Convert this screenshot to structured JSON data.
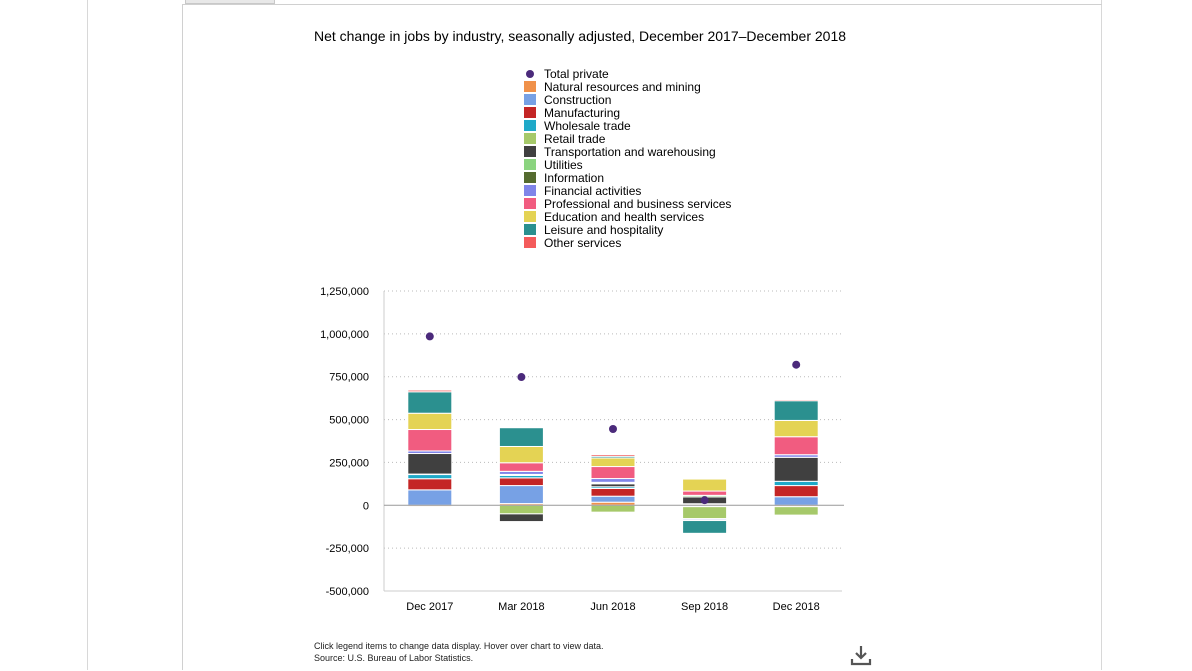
{
  "chart_data": {
    "type": "bar",
    "stacked": true,
    "title": "Net change in jobs by industry, seasonally adjusted, December 2017–December 2018",
    "categories": [
      "Dec 2017",
      "Mar 2018",
      "Jun 2018",
      "Sep 2018",
      "Dec 2018"
    ],
    "ylim": [
      -500000,
      1250000
    ],
    "yticks": [
      -500000,
      -250000,
      0,
      250000,
      500000,
      750000,
      1000000,
      1250000
    ],
    "ytick_labels": [
      "-500,000",
      "-250,000",
      "0",
      "250,000",
      "500,000",
      "750,000",
      "1,000,000",
      "1,250,000"
    ],
    "grid": true,
    "legend_position": "top-center",
    "total": {
      "name": "Total private",
      "color": "#4b2a7b",
      "values": [
        985000,
        748000,
        445000,
        30000,
        820000
      ]
    },
    "series": [
      {
        "name": "Natural resources and mining",
        "color": "#f0914a",
        "values": [
          -8000,
          10000,
          18000,
          -5000,
          -8000
        ]
      },
      {
        "name": "Construction",
        "color": "#77a1e5",
        "values": [
          90000,
          105000,
          35000,
          -3000,
          50000
        ]
      },
      {
        "name": "Manufacturing",
        "color": "#c42525",
        "values": [
          65000,
          45000,
          45000,
          6000,
          65000
        ]
      },
      {
        "name": "Wholesale trade",
        "color": "#1fa9c8",
        "values": [
          25000,
          15000,
          10000,
          3000,
          25000
        ]
      },
      {
        "name": "Retail trade",
        "color": "#a6c96a",
        "values": [
          2000,
          -50000,
          -40000,
          -70000,
          -50000
        ]
      },
      {
        "name": "Transportation and warehousing",
        "color": "#404040",
        "values": [
          120000,
          -45000,
          18000,
          40000,
          140000
        ]
      },
      {
        "name": "Utilities",
        "color": "#8bd47f",
        "values": [
          -3000,
          2000,
          2000,
          9000,
          -3000
        ]
      },
      {
        "name": "Information",
        "color": "#556b2f",
        "values": [
          -3000,
          3000,
          6000,
          -4000,
          -3000
        ]
      },
      {
        "name": "Financial activities",
        "color": "#8085e9",
        "values": [
          15000,
          18000,
          22000,
          -7000,
          15000
        ]
      },
      {
        "name": "Professional and business services",
        "color": "#f15c80",
        "values": [
          125000,
          50000,
          70000,
          25000,
          105000
        ]
      },
      {
        "name": "Education and health services",
        "color": "#e4d354",
        "values": [
          95000,
          95000,
          50000,
          70000,
          95000
        ]
      },
      {
        "name": "Leisure and hospitality",
        "color": "#2b908f",
        "values": [
          125000,
          110000,
          10000,
          -75000,
          115000
        ]
      },
      {
        "name": "Other services",
        "color": "#f45b5b",
        "values": [
          10000,
          5000,
          10000,
          -3000,
          7000
        ]
      }
    ]
  },
  "notes": {
    "line1": "Click legend items to change data display. Hover over chart to view data.",
    "line2": "Source: U.S. Bureau of Labor Statistics."
  },
  "icons": {
    "download": "download-icon"
  }
}
